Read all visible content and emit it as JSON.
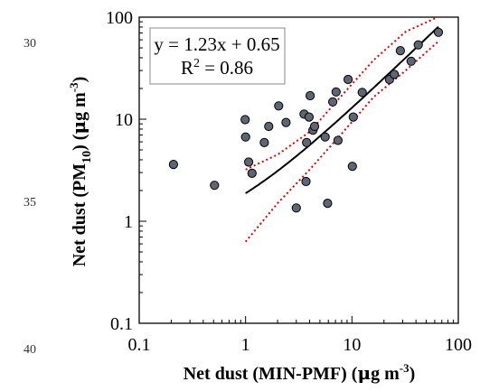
{
  "line_numbers": [
    "30",
    "35",
    "40"
  ],
  "chart_data": {
    "type": "scatter",
    "title": "",
    "xscale": "log",
    "yscale": "log",
    "xlim": [
      0.1,
      100
    ],
    "ylim": [
      0.1,
      100
    ],
    "xticks": [
      0.1,
      1,
      10,
      100
    ],
    "yticks": [
      0.1,
      1,
      10,
      100
    ],
    "xtick_labels": [
      "0.1",
      "1",
      "10",
      "100"
    ],
    "ytick_labels": [
      "0.1",
      "1",
      "10",
      "100"
    ],
    "xlabel": {
      "main": "Net dust (MIN-PMF) (",
      "unit_mu": "μ",
      "unit_g": "g m",
      "unit_sup": "-3",
      "close": ")"
    },
    "ylabel": {
      "main": "Net dust (PM",
      "sub": "10",
      "mid": ") (",
      "unit_mu": "μ",
      "unit_g": "g m",
      "unit_sup": "-3",
      "close": ")"
    },
    "annotation": {
      "equation": "y = 1.23x + 0.65",
      "r2_prefix": "R",
      "r2_sup": "2",
      "r2_value": " = 0.86",
      "placement": "top-left"
    },
    "grid": false,
    "points": [
      {
        "x": 0.21,
        "y": 3.6
      },
      {
        "x": 0.51,
        "y": 2.25
      },
      {
        "x": 0.99,
        "y": 9.9
      },
      {
        "x": 1.0,
        "y": 6.7
      },
      {
        "x": 1.07,
        "y": 3.8
      },
      {
        "x": 1.15,
        "y": 2.95
      },
      {
        "x": 1.5,
        "y": 5.9
      },
      {
        "x": 1.65,
        "y": 8.5
      },
      {
        "x": 2.05,
        "y": 13.5
      },
      {
        "x": 2.4,
        "y": 9.3
      },
      {
        "x": 3.0,
        "y": 1.35
      },
      {
        "x": 3.55,
        "y": 11.2
      },
      {
        "x": 3.7,
        "y": 2.45
      },
      {
        "x": 3.75,
        "y": 5.9
      },
      {
        "x": 3.95,
        "y": 10.5
      },
      {
        "x": 4.05,
        "y": 17.0
      },
      {
        "x": 4.3,
        "y": 7.8
      },
      {
        "x": 4.45,
        "y": 8.5
      },
      {
        "x": 5.6,
        "y": 6.7
      },
      {
        "x": 5.9,
        "y": 1.5
      },
      {
        "x": 6.6,
        "y": 14.8
      },
      {
        "x": 7.1,
        "y": 18.5
      },
      {
        "x": 7.4,
        "y": 6.2
      },
      {
        "x": 9.2,
        "y": 24.5
      },
      {
        "x": 10.1,
        "y": 3.45
      },
      {
        "x": 10.3,
        "y": 10.5
      },
      {
        "x": 12.5,
        "y": 18.3
      },
      {
        "x": 22.5,
        "y": 24.5
      },
      {
        "x": 25.0,
        "y": 27.5
      },
      {
        "x": 28.5,
        "y": 47.0
      },
      {
        "x": 36.0,
        "y": 37.0
      },
      {
        "x": 42.0,
        "y": 53.5
      },
      {
        "x": 65.0,
        "y": 71.0
      }
    ],
    "fit_line": {
      "slope": 1.23,
      "intercept": 0.65,
      "x_range": [
        1,
        65
      ]
    },
    "confidence_bands": {
      "upper": [
        [
          1,
          3.2
        ],
        [
          2,
          4.5
        ],
        [
          4,
          7.5
        ],
        [
          8,
          17
        ],
        [
          16,
          38
        ],
        [
          32,
          72
        ],
        [
          64,
          112
        ]
      ],
      "lower": [
        [
          1,
          0.63
        ],
        [
          2,
          1.5
        ],
        [
          4,
          3.2
        ],
        [
          8,
          7.2
        ],
        [
          16,
          16.5
        ],
        [
          32,
          30
        ],
        [
          64,
          57
        ]
      ]
    },
    "colors": {
      "points_fill": "#5f6673",
      "points_stroke": "#000000",
      "fit_line": "#000000",
      "confidence_bands": "#e00000"
    }
  }
}
